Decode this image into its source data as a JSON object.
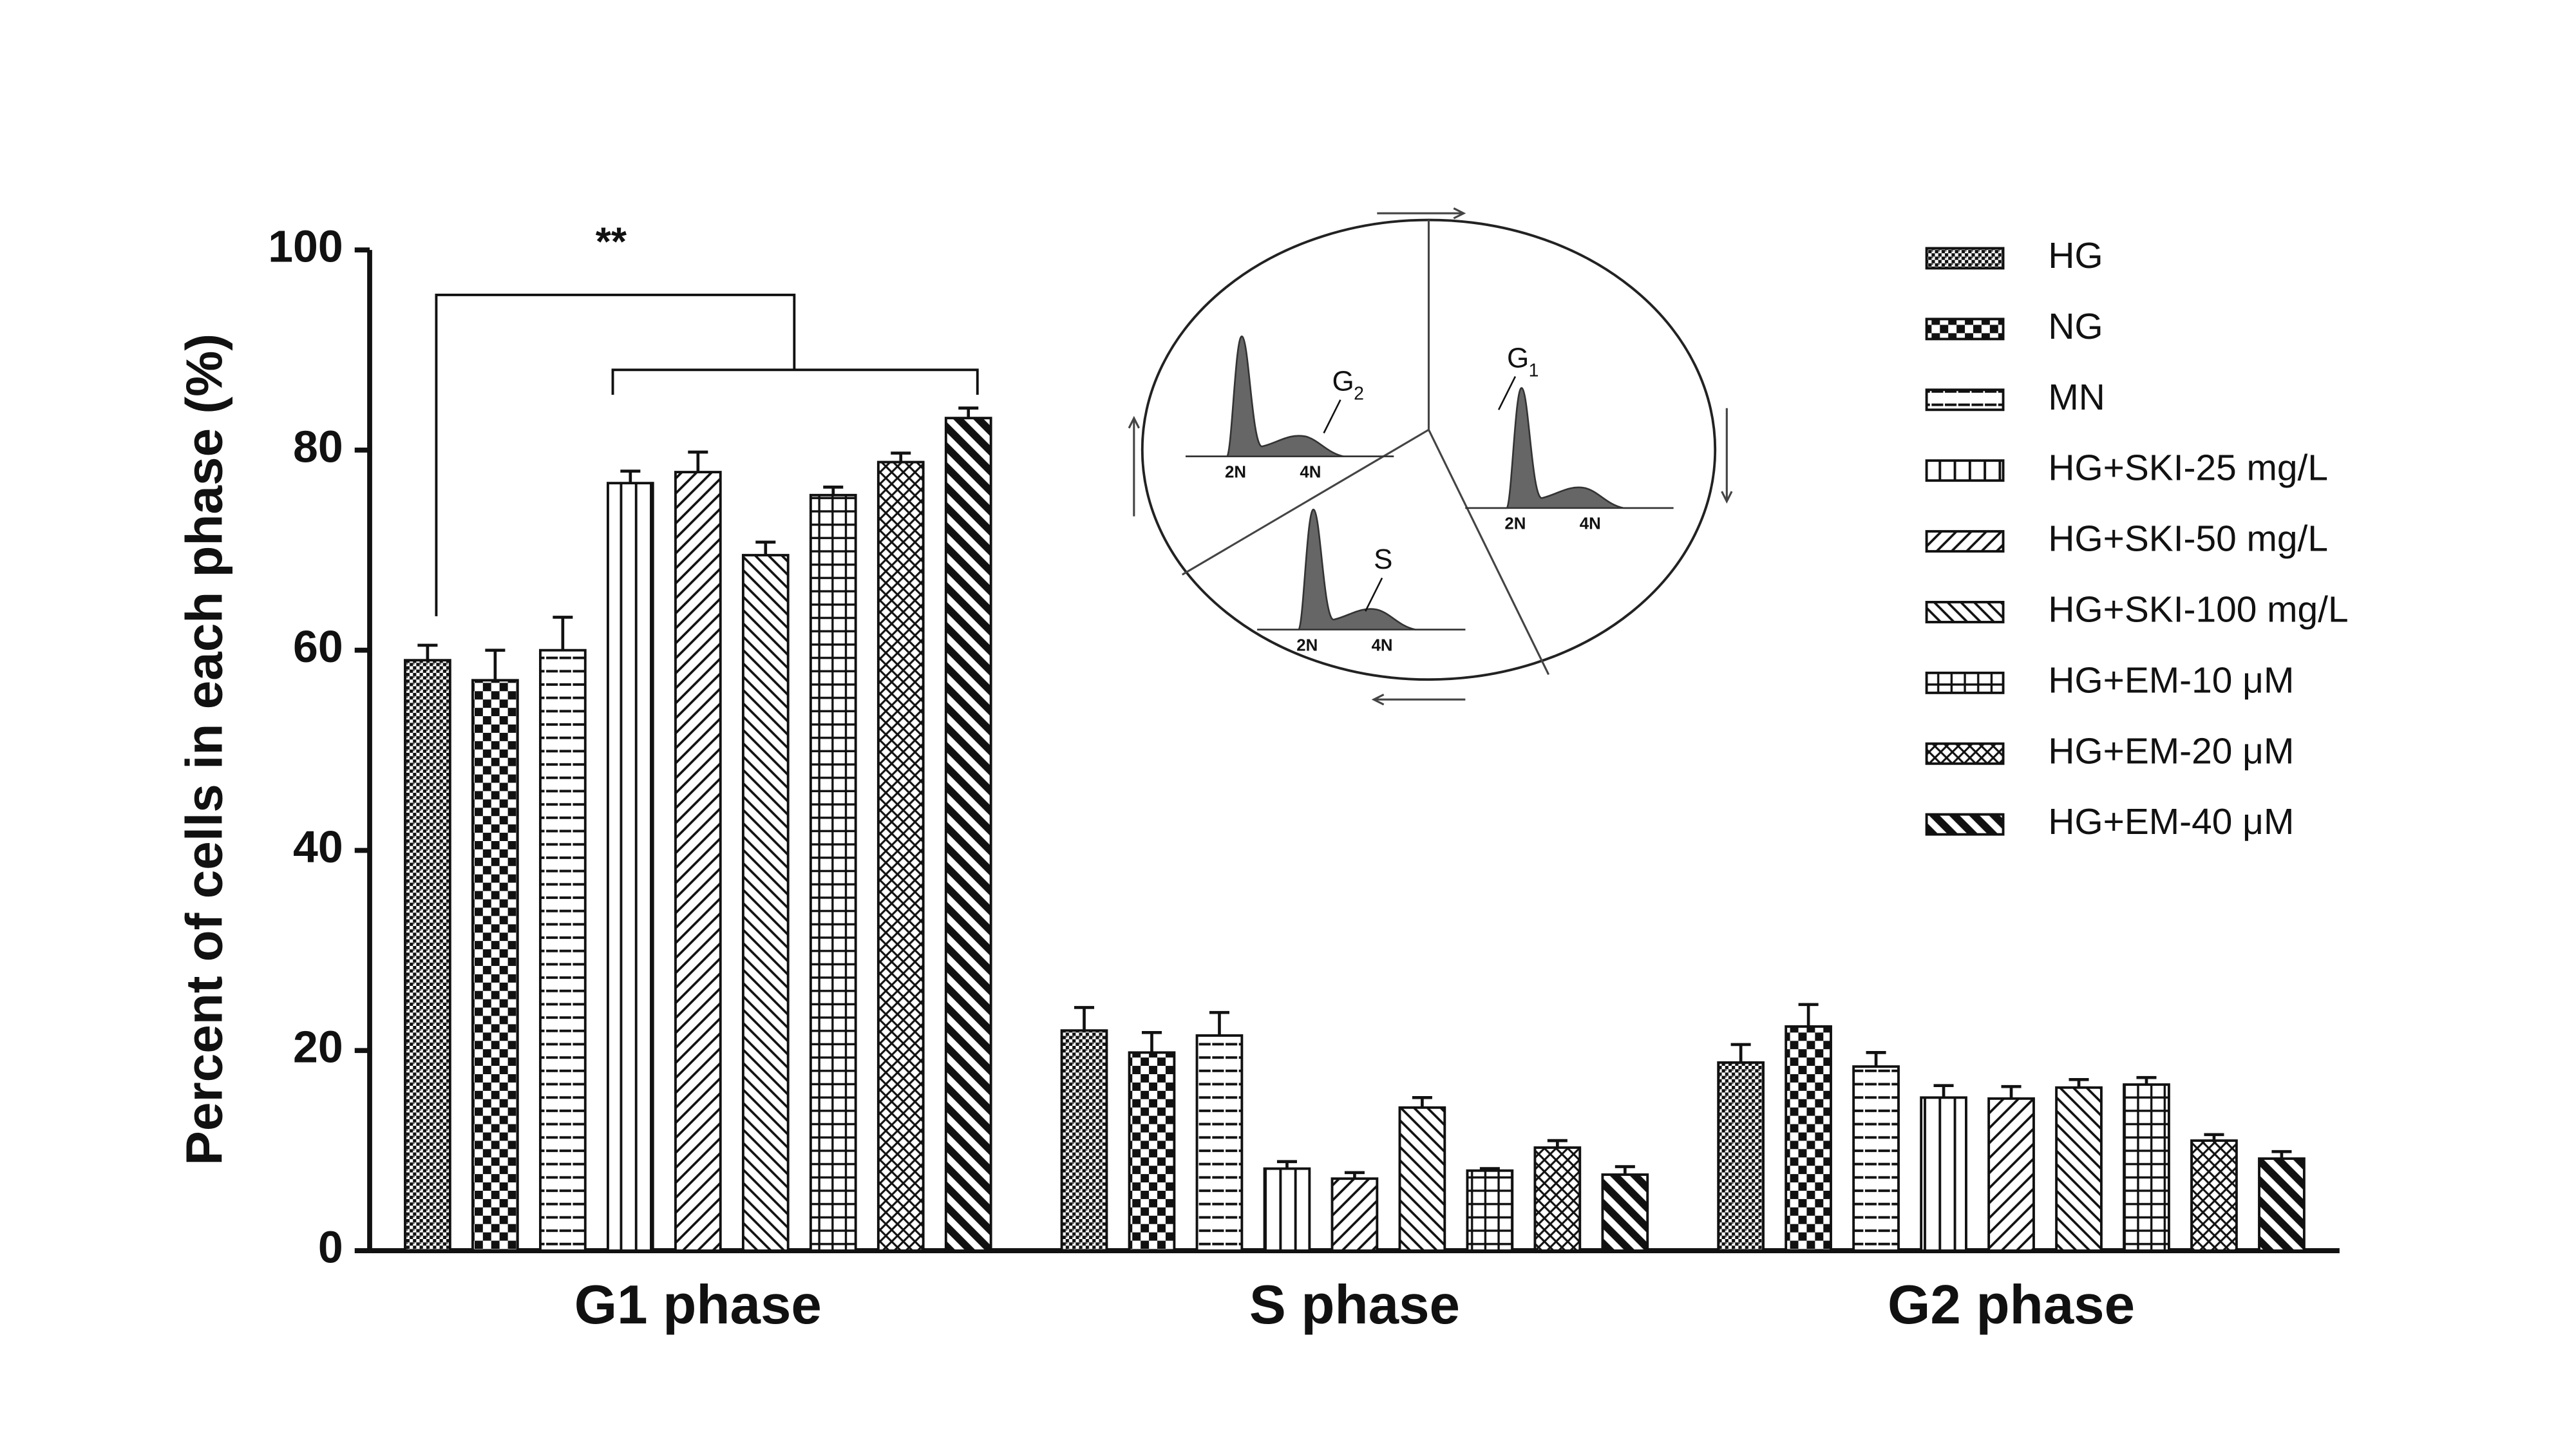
{
  "chart_data": {
    "type": "bar",
    "y_label": "Percent of cells in each phase (%)",
    "categories": [
      "G1 phase",
      "S phase",
      "G2 phase"
    ],
    "ylim": [
      0,
      100
    ],
    "yticks": [
      0,
      20,
      40,
      60,
      80,
      100
    ],
    "legend": "right",
    "series": [
      {
        "name": "HG",
        "pattern": "fine-check",
        "color": "#111",
        "values": [
          59,
          22,
          18.8
        ],
        "errors": [
          1.5,
          2.3,
          1.8
        ]
      },
      {
        "name": "NG",
        "pattern": "checker",
        "color": "#111",
        "values": [
          57,
          19.8,
          22.4
        ],
        "errors": [
          3,
          2,
          2.2
        ]
      },
      {
        "name": "MN",
        "pattern": "horizontal",
        "color": "#111",
        "values": [
          60,
          21.5,
          18.4
        ],
        "errors": [
          3.3,
          2.3,
          1.4
        ]
      },
      {
        "name": "HG+SKI-25 mg/L",
        "pattern": "vertical",
        "color": "#111",
        "values": [
          76.7,
          8.2,
          15.3
        ],
        "errors": [
          1.2,
          0.7,
          1.2
        ]
      },
      {
        "name": "HG+SKI-50 mg/L",
        "pattern": "diagonal",
        "color": "#111",
        "values": [
          77.8,
          7.2,
          15.2
        ],
        "errors": [
          2,
          0.6,
          1.2
        ]
      },
      {
        "name": "HG+SKI-100 mg/L",
        "pattern": "back-diagonal",
        "color": "#111",
        "values": [
          69.5,
          14.3,
          16.3
        ],
        "errors": [
          1.3,
          1,
          0.8
        ]
      },
      {
        "name": "HG+EM-10 μM",
        "pattern": "grid",
        "color": "#111",
        "values": [
          75.5,
          8,
          16.6
        ],
        "errors": [
          0.8,
          0.2,
          0.7
        ]
      },
      {
        "name": "HG+EM-20 μM",
        "pattern": "cross-diagonal",
        "color": "#111",
        "values": [
          78.8,
          10.3,
          11
        ],
        "errors": [
          0.9,
          0.7,
          0.6
        ]
      },
      {
        "name": "HG+EM-40 μM",
        "pattern": "bold-back-diagonal",
        "color": "#111",
        "values": [
          83.2,
          7.6,
          9.2
        ],
        "errors": [
          1,
          0.8,
          0.7
        ]
      }
    ],
    "annotations": [
      "**"
    ],
    "inset": {
      "histograms": [
        {
          "label": "G",
          "sub": "2",
          "dna": [
            "2N",
            "4N"
          ]
        },
        {
          "label": "G",
          "sub": "1",
          "dna": [
            "2N",
            "4N"
          ]
        },
        {
          "label": "S",
          "dna": [
            "2N",
            "4N"
          ]
        }
      ]
    }
  }
}
